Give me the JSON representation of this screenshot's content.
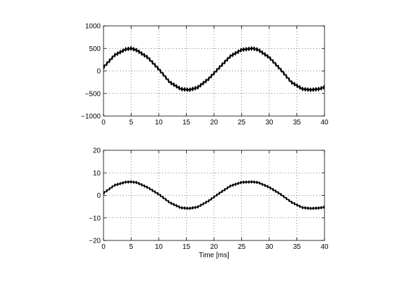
{
  "chart_data": [
    {
      "type": "line",
      "title": "",
      "xlabel": "",
      "ylabel": "",
      "xlim": [
        0,
        40
      ],
      "ylim": [
        -1000,
        1000
      ],
      "xticks": [
        0,
        5,
        10,
        15,
        20,
        25,
        30,
        35,
        40
      ],
      "xtick_labels": [
        "0",
        "5",
        "10",
        "15",
        "20",
        "25",
        "30",
        "35",
        "40"
      ],
      "yticks": [
        -1000,
        -500,
        0,
        500,
        1000
      ],
      "ytick_labels": [
        "−1000",
        "−500",
        "0",
        "500",
        "1000"
      ],
      "grid": true,
      "legend": "none",
      "series": [
        {
          "x": [
            0,
            2,
            4,
            5,
            6,
            8,
            10,
            12,
            14,
            15.5,
            17,
            19,
            21,
            23,
            25,
            27,
            28,
            30,
            32,
            34,
            36,
            37.5,
            39,
            40
          ],
          "y": [
            80,
            350,
            480,
            500,
            460,
            300,
            40,
            -250,
            -400,
            -420,
            -370,
            -180,
            80,
            330,
            470,
            500,
            470,
            300,
            40,
            -250,
            -400,
            -420,
            -400,
            -360
          ],
          "ripple_amplitude": 50
        }
      ]
    },
    {
      "type": "line",
      "title": "",
      "xlabel": "Time [ms]",
      "ylabel": "",
      "xlim": [
        0,
        40
      ],
      "ylim": [
        -20,
        20
      ],
      "xticks": [
        0,
        5,
        10,
        15,
        20,
        25,
        30,
        35,
        40
      ],
      "xtick_labels": [
        "0",
        "5",
        "10",
        "15",
        "20",
        "25",
        "30",
        "35",
        "40"
      ],
      "yticks": [
        -20,
        -10,
        0,
        10,
        20
      ],
      "ytick_labels": [
        "−20",
        "−10",
        "0",
        "10",
        "20"
      ],
      "grid": true,
      "legend": "none",
      "series": [
        {
          "x": [
            0,
            2,
            4,
            5,
            6,
            8,
            10,
            12,
            14,
            15.5,
            17,
            19,
            21,
            23,
            25,
            27,
            28,
            30,
            32,
            34,
            36,
            37.5,
            39,
            40
          ],
          "y": [
            1,
            4.5,
            5.9,
            6,
            5.7,
            3.5,
            0.5,
            -3.2,
            -5.5,
            -5.8,
            -5.2,
            -2.5,
            1,
            4.2,
            5.8,
            6,
            5.7,
            3.6,
            0.6,
            -3,
            -5.4,
            -5.8,
            -5.6,
            -5.2
          ],
          "ripple_amplitude": 0.7
        }
      ]
    }
  ]
}
